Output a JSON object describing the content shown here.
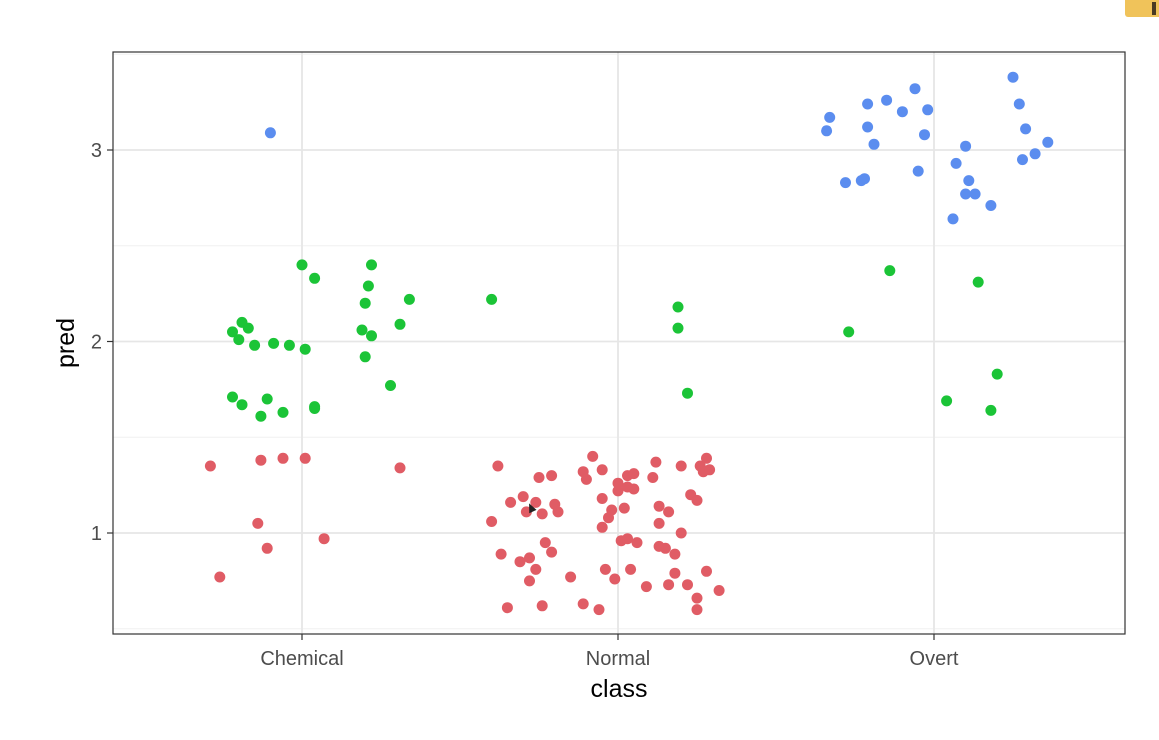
{
  "chart_data": {
    "type": "scatter",
    "xlabel": "class",
    "ylabel": "pred",
    "categories": [
      "Chemical",
      "Normal",
      "Overt"
    ],
    "ylim": [
      0.5,
      3.5
    ],
    "yticks": [
      1,
      2,
      3
    ],
    "grid": true,
    "colors": {
      "red": "#e05c65",
      "green": "#1bc437",
      "blue": "#5b8def"
    },
    "series": [
      {
        "color": "red",
        "points": [
          [
            0.71,
            1.35
          ],
          [
            0.74,
            0.77
          ],
          [
            0.86,
            1.05
          ],
          [
            0.87,
            1.38
          ],
          [
            0.89,
            0.92
          ],
          [
            0.94,
            1.39
          ],
          [
            1.01,
            1.39
          ],
          [
            1.07,
            0.97
          ],
          [
            1.31,
            1.34
          ],
          [
            1.6,
            1.06
          ],
          [
            1.62,
            1.35
          ],
          [
            1.63,
            0.89
          ],
          [
            1.65,
            0.61
          ],
          [
            1.66,
            1.16
          ],
          [
            1.69,
            0.85
          ],
          [
            1.7,
            1.19
          ],
          [
            1.71,
            1.11
          ],
          [
            1.72,
            0.87
          ],
          [
            1.72,
            0.75
          ],
          [
            1.74,
            1.16
          ],
          [
            1.74,
            0.81
          ],
          [
            1.75,
            1.29
          ],
          [
            1.76,
            0.62
          ],
          [
            1.76,
            1.1
          ],
          [
            1.77,
            0.95
          ],
          [
            1.79,
            0.9
          ],
          [
            1.79,
            1.3
          ],
          [
            1.8,
            1.15
          ],
          [
            1.81,
            1.11
          ],
          [
            1.85,
            0.77
          ],
          [
            1.89,
            1.32
          ],
          [
            1.89,
            0.63
          ],
          [
            1.9,
            1.28
          ],
          [
            1.92,
            1.4
          ],
          [
            1.94,
            0.6
          ],
          [
            1.95,
            1.33
          ],
          [
            1.95,
            1.18
          ],
          [
            1.95,
            1.03
          ],
          [
            1.96,
            0.81
          ],
          [
            1.97,
            1.08
          ],
          [
            1.98,
            1.12
          ],
          [
            1.99,
            0.76
          ],
          [
            2.0,
            1.26
          ],
          [
            2.0,
            1.22
          ],
          [
            2.01,
            0.96
          ],
          [
            2.02,
            1.13
          ],
          [
            2.03,
            1.3
          ],
          [
            2.03,
            1.24
          ],
          [
            2.03,
            0.97
          ],
          [
            2.04,
            0.81
          ],
          [
            2.05,
            1.23
          ],
          [
            2.05,
            1.31
          ],
          [
            2.06,
            0.95
          ],
          [
            2.09,
            0.72
          ],
          [
            2.11,
            1.29
          ],
          [
            2.12,
            1.37
          ],
          [
            2.13,
            1.05
          ],
          [
            2.13,
            1.14
          ],
          [
            2.13,
            0.93
          ],
          [
            2.15,
            0.92
          ],
          [
            2.16,
            1.11
          ],
          [
            2.16,
            0.73
          ],
          [
            2.18,
            0.79
          ],
          [
            2.18,
            0.89
          ],
          [
            2.2,
            1.35
          ],
          [
            2.2,
            1.0
          ],
          [
            2.22,
            0.73
          ],
          [
            2.23,
            1.2
          ],
          [
            2.25,
            1.17
          ],
          [
            2.25,
            0.66
          ],
          [
            2.25,
            0.6
          ],
          [
            2.26,
            1.35
          ],
          [
            2.27,
            1.32
          ],
          [
            2.28,
            1.39
          ],
          [
            2.28,
            0.8
          ],
          [
            2.29,
            1.33
          ],
          [
            2.32,
            0.7
          ]
        ]
      },
      {
        "color": "green",
        "points": [
          [
            0.78,
            2.05
          ],
          [
            0.78,
            1.71
          ],
          [
            0.8,
            2.01
          ],
          [
            0.81,
            2.1
          ],
          [
            0.81,
            1.67
          ],
          [
            0.83,
            2.07
          ],
          [
            0.85,
            1.98
          ],
          [
            0.87,
            1.61
          ],
          [
            0.89,
            1.7
          ],
          [
            0.91,
            1.99
          ],
          [
            0.94,
            1.63
          ],
          [
            0.96,
            1.98
          ],
          [
            1.0,
            2.4
          ],
          [
            1.01,
            1.96
          ],
          [
            1.04,
            2.33
          ],
          [
            1.04,
            1.66
          ],
          [
            1.04,
            1.65
          ],
          [
            1.19,
            2.06
          ],
          [
            1.2,
            2.2
          ],
          [
            1.2,
            1.92
          ],
          [
            1.21,
            2.29
          ],
          [
            1.22,
            2.03
          ],
          [
            1.22,
            2.4
          ],
          [
            1.28,
            1.77
          ],
          [
            1.31,
            2.09
          ],
          [
            1.34,
            2.22
          ],
          [
            1.6,
            2.22
          ],
          [
            2.19,
            2.18
          ],
          [
            2.19,
            2.07
          ],
          [
            2.22,
            1.73
          ],
          [
            2.73,
            2.05
          ],
          [
            2.86,
            2.37
          ],
          [
            3.04,
            1.69
          ],
          [
            3.14,
            2.31
          ],
          [
            3.18,
            1.64
          ],
          [
            3.2,
            1.83
          ]
        ]
      },
      {
        "color": "blue",
        "points": [
          [
            0.9,
            3.09
          ],
          [
            2.66,
            3.1
          ],
          [
            2.67,
            3.17
          ],
          [
            2.72,
            2.83
          ],
          [
            2.77,
            2.84
          ],
          [
            2.78,
            2.85
          ],
          [
            2.79,
            3.24
          ],
          [
            2.79,
            3.12
          ],
          [
            2.81,
            3.03
          ],
          [
            2.85,
            3.26
          ],
          [
            2.9,
            3.2
          ],
          [
            2.94,
            3.32
          ],
          [
            2.95,
            2.89
          ],
          [
            2.97,
            3.08
          ],
          [
            2.98,
            3.21
          ],
          [
            3.06,
            2.64
          ],
          [
            3.07,
            2.93
          ],
          [
            3.1,
            3.02
          ],
          [
            3.1,
            2.77
          ],
          [
            3.11,
            2.84
          ],
          [
            3.13,
            2.77
          ],
          [
            3.18,
            2.71
          ],
          [
            3.25,
            3.38
          ],
          [
            3.27,
            3.24
          ],
          [
            3.28,
            2.95
          ],
          [
            3.29,
            3.11
          ],
          [
            3.32,
            2.98
          ],
          [
            3.36,
            3.04
          ]
        ]
      }
    ]
  }
}
